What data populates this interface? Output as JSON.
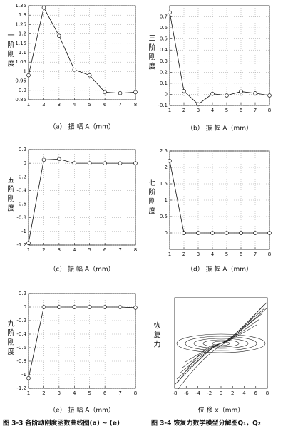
{
  "chart_data": [
    {
      "type": "line",
      "ylabel": "一 阶 刚 度",
      "xlabel": "（a） 振 幅 A（mm）",
      "x": [
        1,
        2,
        3,
        4,
        5,
        6,
        7,
        8
      ],
      "values": [
        0.98,
        1.34,
        1.19,
        1.01,
        0.98,
        0.89,
        0.885,
        0.89
      ],
      "xlim": [
        1,
        8
      ],
      "xticks": [
        1,
        2,
        3,
        4,
        5,
        6,
        7,
        8
      ],
      "ylim": [
        0.85,
        1.35
      ],
      "yticks": [
        0.85,
        0.9,
        0.95,
        1,
        1.05,
        1.1,
        1.15,
        1.2,
        1.25,
        1.3,
        1.35
      ],
      "grid": true,
      "color": "#111111"
    },
    {
      "type": "line",
      "ylabel": "三 阶 刚 度",
      "xlabel": "（b） 振 幅 A（mm）",
      "x": [
        1,
        2,
        3,
        4,
        5,
        6,
        7,
        8
      ],
      "values": [
        0.74,
        0.03,
        -0.09,
        0.005,
        -0.01,
        0.025,
        0.01,
        -0.01
      ],
      "xlim": [
        1,
        8
      ],
      "xticks": [
        1,
        2,
        3,
        4,
        5,
        6,
        7,
        8
      ],
      "ylim": [
        -0.1,
        0.8
      ],
      "yticks": [
        -0.1,
        0,
        0.1,
        0.2,
        0.3,
        0.4,
        0.5,
        0.6,
        0.7
      ],
      "grid": true,
      "color": "#111111"
    },
    {
      "type": "line",
      "ylabel": "五 阶 刚 度",
      "xlabel": "（c） 振 幅 A（mm）",
      "x": [
        1,
        2,
        3,
        4,
        5,
        6,
        7,
        8
      ],
      "values": [
        -1.17,
        0.05,
        0.06,
        0,
        0,
        0,
        0,
        0
      ],
      "xlim": [
        1,
        8
      ],
      "xticks": [
        1,
        2,
        3,
        4,
        5,
        6,
        7,
        8
      ],
      "ylim": [
        -1.2,
        0.2
      ],
      "yticks": [
        -1.2,
        -1,
        -0.8,
        -0.6,
        -0.4,
        -0.2,
        0,
        0.2
      ],
      "grid": true,
      "color": "#111111"
    },
    {
      "type": "line",
      "ylabel": "七 阶 刚 度",
      "xlabel": "（d） 振 幅 A（mm）",
      "x": [
        1,
        2,
        3,
        4,
        5,
        6,
        7,
        8
      ],
      "values": [
        2.2,
        0,
        0,
        0,
        0,
        0,
        0,
        0
      ],
      "xlim": [
        1,
        8
      ],
      "xticks": [
        1,
        2,
        3,
        4,
        5,
        6,
        7,
        8
      ],
      "ylim": [
        -0.5,
        2.5
      ],
      "yticks": [
        0,
        0.5,
        1,
        1.5,
        2,
        2.5
      ],
      "grid": true,
      "color": "#111111"
    },
    {
      "type": "line",
      "ylabel": "九 阶 刚 度",
      "xlabel": "（e） 振 幅 A（mm）",
      "x": [
        1,
        2,
        3,
        4,
        5,
        6,
        7,
        8
      ],
      "values": [
        -1.05,
        0,
        0,
        0,
        0,
        0,
        0,
        -0.01
      ],
      "xlim": [
        1,
        8
      ],
      "xticks": [
        1,
        2,
        3,
        4,
        5,
        6,
        7,
        8
      ],
      "ylim": [
        -1.2,
        0.2
      ],
      "yticks": [
        -1.2,
        -1,
        -0.8,
        -0.6,
        -0.4,
        -0.2,
        0,
        0.2
      ],
      "grid": true,
      "color": "#111111"
    },
    {
      "type": "curves",
      "ylabel": "恢 复 力",
      "xlabel": "位 移 x（mm）",
      "xlim": [
        -8,
        8
      ],
      "xticks": [
        -8,
        -6,
        -4,
        -2,
        0,
        2,
        4,
        6,
        8
      ],
      "grid": false
    }
  ],
  "captions": [
    "图 3-3 各阶动刚度函数曲线图(a) ~ (e)",
    "图 3-4 恢复力数学模型分解图Q₁，Q₂"
  ]
}
